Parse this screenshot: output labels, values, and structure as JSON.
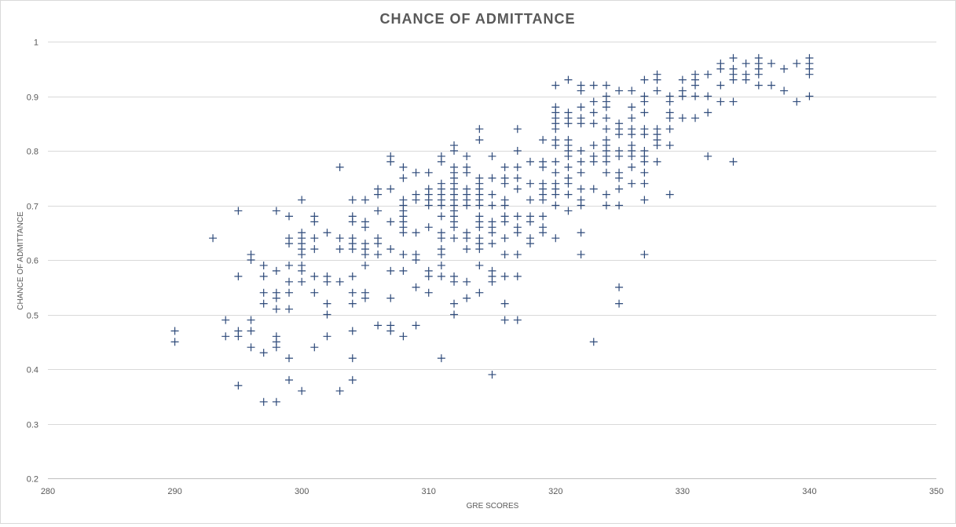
{
  "chart_data": {
    "type": "scatter",
    "title": "CHANCE OF ADMITTANCE",
    "xlabel": "GRE SCORES",
    "ylabel": "CHANCE OF ADMITTANCE",
    "xlim": [
      280,
      350
    ],
    "ylim": [
      0.2,
      1
    ],
    "xticks": [
      280,
      290,
      300,
      310,
      320,
      330,
      340,
      350
    ],
    "yticks": [
      0.2,
      0.3,
      0.4,
      0.5,
      0.6,
      0.7,
      0.8,
      0.9,
      1
    ],
    "ytick_labels": [
      "0.2",
      "0.3",
      "0.4",
      "0.5",
      "0.6",
      "0.7",
      "0.8",
      "0.9",
      "1"
    ],
    "grid": "horizontal",
    "marker": "plus",
    "colors": {
      "marker": "#2e4a7a",
      "grid": "#d9d9d9",
      "text": "#595959"
    },
    "points": [
      [
        290,
        0.47
      ],
      [
        290,
        0.45
      ],
      [
        293,
        0.64
      ],
      [
        294,
        0.49
      ],
      [
        294,
        0.46
      ],
      [
        295,
        0.69
      ],
      [
        295,
        0.57
      ],
      [
        295,
        0.47
      ],
      [
        295,
        0.46
      ],
      [
        295,
        0.37
      ],
      [
        296,
        0.61
      ],
      [
        296,
        0.6
      ],
      [
        296,
        0.49
      ],
      [
        296,
        0.47
      ],
      [
        296,
        0.44
      ],
      [
        297,
        0.59
      ],
      [
        297,
        0.57
      ],
      [
        297,
        0.54
      ],
      [
        297,
        0.52
      ],
      [
        297,
        0.43
      ],
      [
        297,
        0.34
      ],
      [
        298,
        0.69
      ],
      [
        298,
        0.58
      ],
      [
        298,
        0.54
      ],
      [
        298,
        0.53
      ],
      [
        298,
        0.51
      ],
      [
        298,
        0.46
      ],
      [
        298,
        0.45
      ],
      [
        298,
        0.44
      ],
      [
        298,
        0.34
      ],
      [
        299,
        0.68
      ],
      [
        299,
        0.64
      ],
      [
        299,
        0.63
      ],
      [
        299,
        0.59
      ],
      [
        299,
        0.56
      ],
      [
        299,
        0.54
      ],
      [
        299,
        0.51
      ],
      [
        299,
        0.42
      ],
      [
        299,
        0.38
      ],
      [
        300,
        0.71
      ],
      [
        300,
        0.65
      ],
      [
        300,
        0.64
      ],
      [
        300,
        0.63
      ],
      [
        300,
        0.62
      ],
      [
        300,
        0.61
      ],
      [
        300,
        0.59
      ],
      [
        300,
        0.58
      ],
      [
        300,
        0.56
      ],
      [
        300,
        0.36
      ],
      [
        301,
        0.68
      ],
      [
        301,
        0.67
      ],
      [
        301,
        0.64
      ],
      [
        301,
        0.62
      ],
      [
        301,
        0.57
      ],
      [
        301,
        0.54
      ],
      [
        301,
        0.44
      ],
      [
        302,
        0.65
      ],
      [
        302,
        0.57
      ],
      [
        302,
        0.56
      ],
      [
        302,
        0.52
      ],
      [
        302,
        0.5
      ],
      [
        302,
        0.46
      ],
      [
        303,
        0.77
      ],
      [
        303,
        0.64
      ],
      [
        303,
        0.62
      ],
      [
        303,
        0.56
      ],
      [
        303,
        0.36
      ],
      [
        304,
        0.71
      ],
      [
        304,
        0.68
      ],
      [
        304,
        0.67
      ],
      [
        304,
        0.64
      ],
      [
        304,
        0.63
      ],
      [
        304,
        0.62
      ],
      [
        304,
        0.57
      ],
      [
        304,
        0.54
      ],
      [
        304,
        0.52
      ],
      [
        304,
        0.47
      ],
      [
        304,
        0.42
      ],
      [
        304,
        0.38
      ],
      [
        305,
        0.71
      ],
      [
        305,
        0.67
      ],
      [
        305,
        0.66
      ],
      [
        305,
        0.63
      ],
      [
        305,
        0.62
      ],
      [
        305,
        0.61
      ],
      [
        305,
        0.59
      ],
      [
        305,
        0.54
      ],
      [
        305,
        0.53
      ],
      [
        306,
        0.73
      ],
      [
        306,
        0.72
      ],
      [
        306,
        0.69
      ],
      [
        306,
        0.64
      ],
      [
        306,
        0.63
      ],
      [
        306,
        0.61
      ],
      [
        306,
        0.48
      ],
      [
        307,
        0.79
      ],
      [
        307,
        0.78
      ],
      [
        307,
        0.73
      ],
      [
        307,
        0.67
      ],
      [
        307,
        0.62
      ],
      [
        307,
        0.58
      ],
      [
        307,
        0.53
      ],
      [
        307,
        0.48
      ],
      [
        307,
        0.47
      ],
      [
        308,
        0.77
      ],
      [
        308,
        0.75
      ],
      [
        308,
        0.71
      ],
      [
        308,
        0.7
      ],
      [
        308,
        0.69
      ],
      [
        308,
        0.68
      ],
      [
        308,
        0.67
      ],
      [
        308,
        0.66
      ],
      [
        308,
        0.65
      ],
      [
        308,
        0.61
      ],
      [
        308,
        0.58
      ],
      [
        308,
        0.46
      ],
      [
        309,
        0.76
      ],
      [
        309,
        0.72
      ],
      [
        309,
        0.71
      ],
      [
        309,
        0.65
      ],
      [
        309,
        0.61
      ],
      [
        309,
        0.6
      ],
      [
        309,
        0.55
      ],
      [
        309,
        0.48
      ],
      [
        310,
        0.76
      ],
      [
        310,
        0.73
      ],
      [
        310,
        0.72
      ],
      [
        310,
        0.71
      ],
      [
        310,
        0.7
      ],
      [
        310,
        0.66
      ],
      [
        310,
        0.58
      ],
      [
        310,
        0.57
      ],
      [
        310,
        0.54
      ],
      [
        311,
        0.79
      ],
      [
        311,
        0.78
      ],
      [
        311,
        0.74
      ],
      [
        311,
        0.73
      ],
      [
        311,
        0.72
      ],
      [
        311,
        0.71
      ],
      [
        311,
        0.7
      ],
      [
        311,
        0.68
      ],
      [
        311,
        0.65
      ],
      [
        311,
        0.64
      ],
      [
        311,
        0.62
      ],
      [
        311,
        0.61
      ],
      [
        311,
        0.59
      ],
      [
        311,
        0.57
      ],
      [
        311,
        0.42
      ],
      [
        312,
        0.81
      ],
      [
        312,
        0.8
      ],
      [
        312,
        0.77
      ],
      [
        312,
        0.76
      ],
      [
        312,
        0.75
      ],
      [
        312,
        0.74
      ],
      [
        312,
        0.73
      ],
      [
        312,
        0.72
      ],
      [
        312,
        0.71
      ],
      [
        312,
        0.7
      ],
      [
        312,
        0.69
      ],
      [
        312,
        0.68
      ],
      [
        312,
        0.67
      ],
      [
        312,
        0.66
      ],
      [
        312,
        0.64
      ],
      [
        312,
        0.57
      ],
      [
        312,
        0.56
      ],
      [
        312,
        0.52
      ],
      [
        312,
        0.5
      ],
      [
        313,
        0.79
      ],
      [
        313,
        0.77
      ],
      [
        313,
        0.76
      ],
      [
        313,
        0.73
      ],
      [
        313,
        0.72
      ],
      [
        313,
        0.71
      ],
      [
        313,
        0.7
      ],
      [
        313,
        0.65
      ],
      [
        313,
        0.64
      ],
      [
        313,
        0.62
      ],
      [
        313,
        0.56
      ],
      [
        313,
        0.53
      ],
      [
        314,
        0.84
      ],
      [
        314,
        0.82
      ],
      [
        314,
        0.75
      ],
      [
        314,
        0.74
      ],
      [
        314,
        0.73
      ],
      [
        314,
        0.72
      ],
      [
        314,
        0.71
      ],
      [
        314,
        0.7
      ],
      [
        314,
        0.68
      ],
      [
        314,
        0.67
      ],
      [
        314,
        0.66
      ],
      [
        314,
        0.64
      ],
      [
        314,
        0.63
      ],
      [
        314,
        0.62
      ],
      [
        314,
        0.59
      ],
      [
        314,
        0.54
      ],
      [
        315,
        0.79
      ],
      [
        315,
        0.75
      ],
      [
        315,
        0.72
      ],
      [
        315,
        0.7
      ],
      [
        315,
        0.67
      ],
      [
        315,
        0.66
      ],
      [
        315,
        0.65
      ],
      [
        315,
        0.63
      ],
      [
        315,
        0.58
      ],
      [
        315,
        0.57
      ],
      [
        315,
        0.56
      ],
      [
        315,
        0.39
      ],
      [
        316,
        0.77
      ],
      [
        316,
        0.75
      ],
      [
        316,
        0.74
      ],
      [
        316,
        0.71
      ],
      [
        316,
        0.7
      ],
      [
        316,
        0.68
      ],
      [
        316,
        0.67
      ],
      [
        316,
        0.64
      ],
      [
        316,
        0.61
      ],
      [
        316,
        0.57
      ],
      [
        316,
        0.52
      ],
      [
        316,
        0.49
      ],
      [
        317,
        0.84
      ],
      [
        317,
        0.8
      ],
      [
        317,
        0.77
      ],
      [
        317,
        0.75
      ],
      [
        317,
        0.73
      ],
      [
        317,
        0.68
      ],
      [
        317,
        0.66
      ],
      [
        317,
        0.65
      ],
      [
        317,
        0.61
      ],
      [
        317,
        0.57
      ],
      [
        317,
        0.49
      ],
      [
        318,
        0.78
      ],
      [
        318,
        0.74
      ],
      [
        318,
        0.71
      ],
      [
        318,
        0.68
      ],
      [
        318,
        0.67
      ],
      [
        318,
        0.64
      ],
      [
        318,
        0.63
      ],
      [
        319,
        0.82
      ],
      [
        319,
        0.78
      ],
      [
        319,
        0.77
      ],
      [
        319,
        0.74
      ],
      [
        319,
        0.73
      ],
      [
        319,
        0.72
      ],
      [
        319,
        0.71
      ],
      [
        319,
        0.68
      ],
      [
        319,
        0.66
      ],
      [
        319,
        0.65
      ],
      [
        320,
        0.92
      ],
      [
        320,
        0.88
      ],
      [
        320,
        0.87
      ],
      [
        320,
        0.86
      ],
      [
        320,
        0.85
      ],
      [
        320,
        0.84
      ],
      [
        320,
        0.82
      ],
      [
        320,
        0.81
      ],
      [
        320,
        0.78
      ],
      [
        320,
        0.76
      ],
      [
        320,
        0.74
      ],
      [
        320,
        0.73
      ],
      [
        320,
        0.72
      ],
      [
        320,
        0.7
      ],
      [
        320,
        0.64
      ],
      [
        321,
        0.93
      ],
      [
        321,
        0.87
      ],
      [
        321,
        0.86
      ],
      [
        321,
        0.85
      ],
      [
        321,
        0.82
      ],
      [
        321,
        0.81
      ],
      [
        321,
        0.8
      ],
      [
        321,
        0.79
      ],
      [
        321,
        0.77
      ],
      [
        321,
        0.75
      ],
      [
        321,
        0.74
      ],
      [
        321,
        0.72
      ],
      [
        321,
        0.69
      ],
      [
        322,
        0.92
      ],
      [
        322,
        0.91
      ],
      [
        322,
        0.88
      ],
      [
        322,
        0.86
      ],
      [
        322,
        0.85
      ],
      [
        322,
        0.8
      ],
      [
        322,
        0.78
      ],
      [
        322,
        0.76
      ],
      [
        322,
        0.73
      ],
      [
        322,
        0.71
      ],
      [
        322,
        0.7
      ],
      [
        322,
        0.65
      ],
      [
        322,
        0.61
      ],
      [
        323,
        0.92
      ],
      [
        323,
        0.89
      ],
      [
        323,
        0.87
      ],
      [
        323,
        0.85
      ],
      [
        323,
        0.81
      ],
      [
        323,
        0.79
      ],
      [
        323,
        0.78
      ],
      [
        323,
        0.73
      ],
      [
        323,
        0.45
      ],
      [
        324,
        0.92
      ],
      [
        324,
        0.9
      ],
      [
        324,
        0.89
      ],
      [
        324,
        0.88
      ],
      [
        324,
        0.86
      ],
      [
        324,
        0.84
      ],
      [
        324,
        0.82
      ],
      [
        324,
        0.81
      ],
      [
        324,
        0.8
      ],
      [
        324,
        0.79
      ],
      [
        324,
        0.78
      ],
      [
        324,
        0.76
      ],
      [
        324,
        0.72
      ],
      [
        324,
        0.7
      ],
      [
        325,
        0.91
      ],
      [
        325,
        0.85
      ],
      [
        325,
        0.84
      ],
      [
        325,
        0.83
      ],
      [
        325,
        0.8
      ],
      [
        325,
        0.79
      ],
      [
        325,
        0.76
      ],
      [
        325,
        0.75
      ],
      [
        325,
        0.73
      ],
      [
        325,
        0.7
      ],
      [
        325,
        0.55
      ],
      [
        325,
        0.52
      ],
      [
        326,
        0.91
      ],
      [
        326,
        0.88
      ],
      [
        326,
        0.86
      ],
      [
        326,
        0.84
      ],
      [
        326,
        0.83
      ],
      [
        326,
        0.81
      ],
      [
        326,
        0.8
      ],
      [
        326,
        0.79
      ],
      [
        326,
        0.77
      ],
      [
        326,
        0.74
      ],
      [
        327,
        0.93
      ],
      [
        327,
        0.9
      ],
      [
        327,
        0.89
      ],
      [
        327,
        0.87
      ],
      [
        327,
        0.84
      ],
      [
        327,
        0.83
      ],
      [
        327,
        0.8
      ],
      [
        327,
        0.79
      ],
      [
        327,
        0.78
      ],
      [
        327,
        0.76
      ],
      [
        327,
        0.74
      ],
      [
        327,
        0.71
      ],
      [
        327,
        0.61
      ],
      [
        328,
        0.94
      ],
      [
        328,
        0.93
      ],
      [
        328,
        0.91
      ],
      [
        328,
        0.84
      ],
      [
        328,
        0.83
      ],
      [
        328,
        0.82
      ],
      [
        328,
        0.81
      ],
      [
        328,
        0.78
      ],
      [
        329,
        0.9
      ],
      [
        329,
        0.89
      ],
      [
        329,
        0.87
      ],
      [
        329,
        0.86
      ],
      [
        329,
        0.84
      ],
      [
        329,
        0.81
      ],
      [
        329,
        0.72
      ],
      [
        330,
        0.93
      ],
      [
        330,
        0.91
      ],
      [
        330,
        0.9
      ],
      [
        330,
        0.86
      ],
      [
        331,
        0.94
      ],
      [
        331,
        0.93
      ],
      [
        331,
        0.92
      ],
      [
        331,
        0.9
      ],
      [
        331,
        0.86
      ],
      [
        332,
        0.94
      ],
      [
        332,
        0.9
      ],
      [
        332,
        0.87
      ],
      [
        332,
        0.79
      ],
      [
        333,
        0.96
      ],
      [
        333,
        0.95
      ],
      [
        333,
        0.92
      ],
      [
        333,
        0.89
      ],
      [
        334,
        0.97
      ],
      [
        334,
        0.95
      ],
      [
        334,
        0.94
      ],
      [
        334,
        0.93
      ],
      [
        334,
        0.89
      ],
      [
        334,
        0.78
      ],
      [
        335,
        0.96
      ],
      [
        335,
        0.94
      ],
      [
        335,
        0.93
      ],
      [
        336,
        0.97
      ],
      [
        336,
        0.96
      ],
      [
        336,
        0.95
      ],
      [
        336,
        0.94
      ],
      [
        336,
        0.92
      ],
      [
        337,
        0.96
      ],
      [
        337,
        0.92
      ],
      [
        338,
        0.95
      ],
      [
        338,
        0.91
      ],
      [
        339,
        0.96
      ],
      [
        339,
        0.89
      ],
      [
        340,
        0.97
      ],
      [
        340,
        0.96
      ],
      [
        340,
        0.95
      ],
      [
        340,
        0.94
      ],
      [
        340,
        0.9
      ]
    ]
  }
}
